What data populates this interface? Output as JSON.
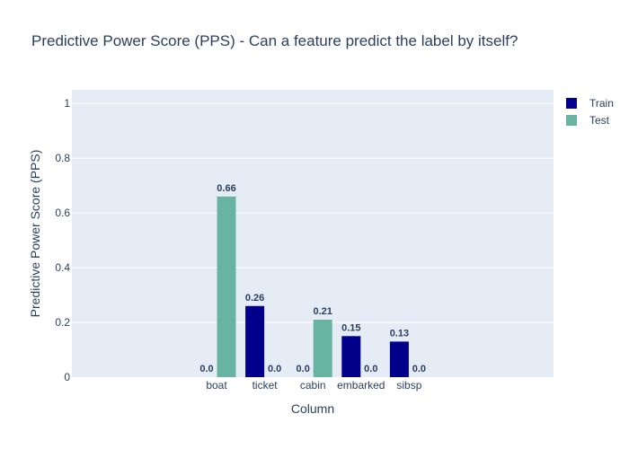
{
  "chart_data": {
    "type": "bar",
    "title": "Predictive Power Score (PPS) - Can a feature predict the label by itself?",
    "xlabel": "Column",
    "ylabel": "Predictive Power Score (PPS)",
    "categories": [
      "boat",
      "ticket",
      "cabin",
      "embarked",
      "sibsp"
    ],
    "series": [
      {
        "name": "Train",
        "color": "#00008b",
        "values": [
          0.0,
          0.26,
          0.0,
          0.15,
          0.13
        ],
        "labels": [
          "0.0",
          "0.26",
          "0.0",
          "0.15",
          "0.13"
        ]
      },
      {
        "name": "Test",
        "color": "#69b3a2",
        "values": [
          0.66,
          0.0,
          0.21,
          0.0,
          0.0
        ],
        "labels": [
          "0.66",
          "0.0",
          "0.21",
          "0.0",
          "0.0"
        ]
      }
    ],
    "ylim": [
      0,
      1.0
    ],
    "yticks": [
      0,
      0.2,
      0.4,
      0.6,
      0.8,
      1
    ],
    "ytick_labels": [
      "0",
      "0.2",
      "0.4",
      "0.6",
      "0.8",
      "1"
    ],
    "grid": true,
    "legend_position": "top-right",
    "plot_background": "#e5ecf6"
  }
}
